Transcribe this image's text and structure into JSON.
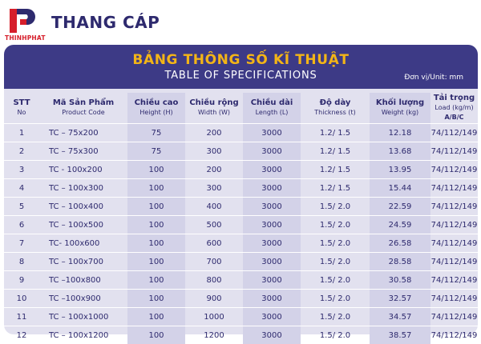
{
  "brand": {
    "logo_text": "THINHPHAT",
    "product_name": "THANG CÁP",
    "logo_colors": {
      "red": "#d61f2b",
      "navy": "#2e2a6e"
    }
  },
  "table_sheet": {
    "title_vn": "BẢNG THÔNG SỐ KĨ THUẬT",
    "title_en": "TABLE OF SPECIFICATIONS",
    "unit": "Đơn vị/Unit: mm",
    "header_color": "#3d3a86",
    "accent_color": "#f3b517",
    "columns": [
      {
        "label": "STT",
        "sub": "No"
      },
      {
        "label": "Mã Sản Phẩm",
        "sub": "Product Code"
      },
      {
        "label": "Chiều cao",
        "sub": "Height (H)"
      },
      {
        "label": "Chiều rộng",
        "sub": "Width (W)"
      },
      {
        "label": "Chiều dài",
        "sub": "Length (L)"
      },
      {
        "label": "Độ dày",
        "sub": "Thickness (t)"
      },
      {
        "label": "Khối lượng",
        "sub": "Weight (kg)"
      },
      {
        "label": "Tải trọng",
        "sub": "Load (kg/m)",
        "sub2": "A/B/C"
      }
    ],
    "rows": [
      [
        "1",
        "TC – 75x200",
        "75",
        "200",
        "3000",
        "1.2/ 1.5",
        "12.18",
        "74/112/149"
      ],
      [
        "2",
        "TC – 75x300",
        "75",
        "300",
        "3000",
        "1.2/ 1.5",
        "13.68",
        "74/112/149"
      ],
      [
        "3",
        "TC - 100x200",
        "100",
        "200",
        "3000",
        "1.2/ 1.5",
        "13.95",
        "74/112/149"
      ],
      [
        "4",
        "TC – 100x300",
        "100",
        "300",
        "3000",
        "1.2/ 1.5",
        "15.44",
        "74/112/149"
      ],
      [
        "5",
        "TC – 100x400",
        "100",
        "400",
        "3000",
        "1.5/ 2.0",
        "22.59",
        "74/112/149"
      ],
      [
        "6",
        "TC – 100x500",
        "100",
        "500",
        "3000",
        "1.5/ 2.0",
        "24.59",
        "74/112/149"
      ],
      [
        "7",
        "TC- 100x600",
        "100",
        "600",
        "3000",
        "1.5/ 2.0",
        "26.58",
        "74/112/149"
      ],
      [
        "8",
        "TC – 100x700",
        "100",
        "700",
        "3000",
        "1.5/ 2.0",
        "28.58",
        "74/112/149"
      ],
      [
        "9",
        "TC –100x800",
        "100",
        "800",
        "3000",
        "1.5/ 2.0",
        "30.58",
        "74/112/149"
      ],
      [
        "10",
        "TC –100x900",
        "100",
        "900",
        "3000",
        "1.5/ 2.0",
        "32.57",
        "74/112/149"
      ],
      [
        "11",
        "TC – 100x1000",
        "100",
        "1000",
        "3000",
        "1.5/ 2.0",
        "34.57",
        "74/112/149"
      ],
      [
        "12",
        "TC – 100x1200",
        "100",
        "1200",
        "3000",
        "1.5/ 2.0",
        "38.57",
        "74/112/149"
      ]
    ]
  }
}
